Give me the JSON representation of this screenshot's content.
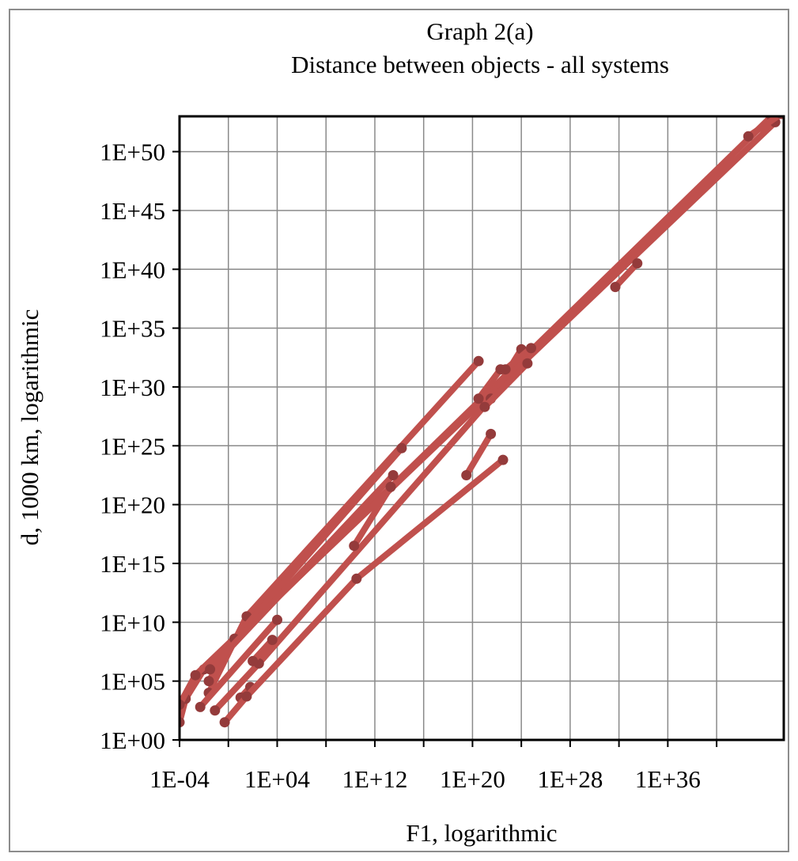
{
  "chart_data": {
    "type": "line",
    "title": "Graph 2(a)",
    "subtitle": "Distance between objects - all systems",
    "xlabel": "F1, logarithmic",
    "ylabel": "d, 1000 km, logarithmic",
    "x_scale": "log",
    "y_scale": "log",
    "xlim_log10": [
      -4,
      45.5
    ],
    "ylim_log10": [
      0,
      53
    ],
    "x_gridlines_log10": [
      -4,
      0,
      4,
      8,
      12,
      16,
      20,
      24,
      28,
      32,
      36,
      40
    ],
    "y_gridlines_log10": [
      0,
      5,
      10,
      15,
      20,
      25,
      30,
      35,
      40,
      45,
      50
    ],
    "x_tick_labels": [
      {
        "value_log10": -4,
        "label": "1E-04"
      },
      {
        "value_log10": 4,
        "label": "1E+04"
      },
      {
        "value_log10": 12,
        "label": "1E+12"
      },
      {
        "value_log10": 20,
        "label": "1E+20"
      },
      {
        "value_log10": 28,
        "label": "1E+28"
      },
      {
        "value_log10": 36,
        "label": "1E+36"
      }
    ],
    "y_tick_labels": [
      {
        "value_log10": 0,
        "label": "1E+00"
      },
      {
        "value_log10": 5,
        "label": "1E+05"
      },
      {
        "value_log10": 10,
        "label": "1E+10"
      },
      {
        "value_log10": 15,
        "label": "1E+15"
      },
      {
        "value_log10": 20,
        "label": "1E+20"
      },
      {
        "value_log10": 25,
        "label": "1E+25"
      },
      {
        "value_log10": 30,
        "label": "1E+30"
      },
      {
        "value_log10": 35,
        "label": "1E+35"
      },
      {
        "value_log10": 40,
        "label": "1E+40"
      },
      {
        "value_log10": 45,
        "label": "1E+45"
      },
      {
        "value_log10": 50,
        "label": "1E+50"
      }
    ],
    "grid": true,
    "legend": "none",
    "line_color": "#c0504d",
    "marker_color": "#943b3b",
    "series": [
      {
        "points": [
          [
            -4,
            1.5
          ],
          [
            -3.5,
            3.5
          ],
          [
            -2,
            6
          ],
          [
            44.5,
            53
          ]
        ]
      },
      {
        "points": [
          [
            -4,
            3
          ],
          [
            -2.7,
            5.5
          ],
          [
            44.8,
            52.5
          ]
        ]
      },
      {
        "points": [
          [
            -1.6,
            4
          ],
          [
            1.5,
            10.5
          ],
          [
            20.5,
            32.2
          ]
        ]
      },
      {
        "points": [
          [
            -1.6,
            5
          ],
          [
            0.5,
            8.6
          ],
          [
            14.2,
            24.8
          ]
        ]
      },
      {
        "points": [
          [
            -1.1,
            2.5
          ],
          [
            2.5,
            6.5
          ],
          [
            21.5,
            29
          ],
          [
            24,
            33.2
          ]
        ]
      },
      {
        "points": [
          [
            -1.5,
            6
          ],
          [
            13.5,
            22.5
          ]
        ]
      },
      {
        "points": [
          [
            1,
            3.6
          ],
          [
            1.8,
            4.5
          ]
        ]
      },
      {
        "points": [
          [
            -2.3,
            2.8
          ],
          [
            4,
            10.2
          ]
        ]
      },
      {
        "points": [
          [
            2,
            6.7
          ],
          [
            3.6,
            8.5
          ]
        ]
      },
      {
        "points": [
          [
            -0.3,
            1.5
          ],
          [
            1.5,
            3.7
          ],
          [
            10.5,
            13.7
          ],
          [
            22.5,
            23.8
          ]
        ]
      },
      {
        "points": [
          [
            10.3,
            16.5
          ],
          [
            13.3,
            21.5
          ]
        ]
      },
      {
        "points": [
          [
            19.5,
            22.5
          ],
          [
            21.5,
            26
          ]
        ]
      },
      {
        "points": [
          [
            20.5,
            29
          ],
          [
            22.3,
            31.5
          ]
        ]
      },
      {
        "points": [
          [
            21,
            28.3
          ],
          [
            24.5,
            32
          ]
        ]
      },
      {
        "points": [
          [
            22.7,
            31.5
          ],
          [
            24.8,
            33.3
          ]
        ]
      },
      {
        "points": [
          [
            31.7,
            38.5
          ],
          [
            33.5,
            40.5
          ]
        ]
      },
      {
        "points": [
          [
            42.6,
            51.3
          ],
          [
            45.3,
            53.2
          ]
        ]
      }
    ]
  }
}
